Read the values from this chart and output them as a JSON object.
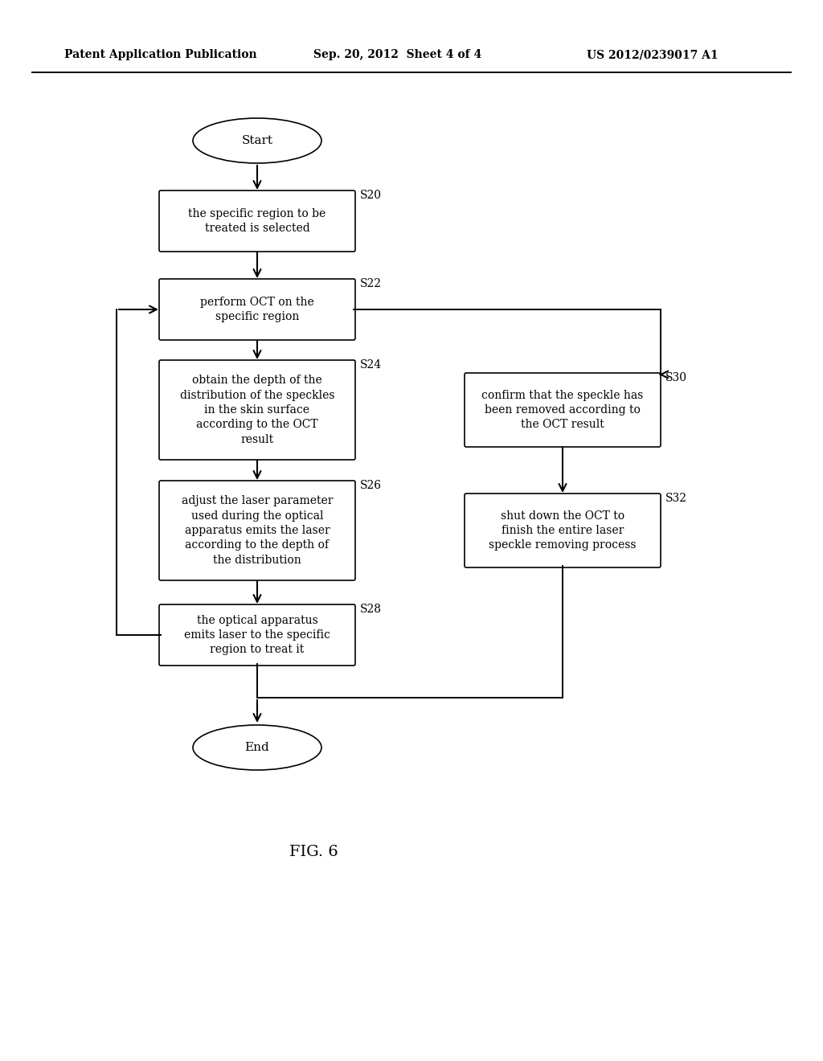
{
  "bg_color": "#ffffff",
  "header_left": "Patent Application Publication",
  "header_center": "Sep. 20, 2012  Sheet 4 of 4",
  "header_right": "US 2012/0239017 A1",
  "fig_label": "FIG. 6",
  "font_size_box": 10,
  "font_size_label": 10,
  "font_size_header": 10,
  "font_size_terminal": 11
}
